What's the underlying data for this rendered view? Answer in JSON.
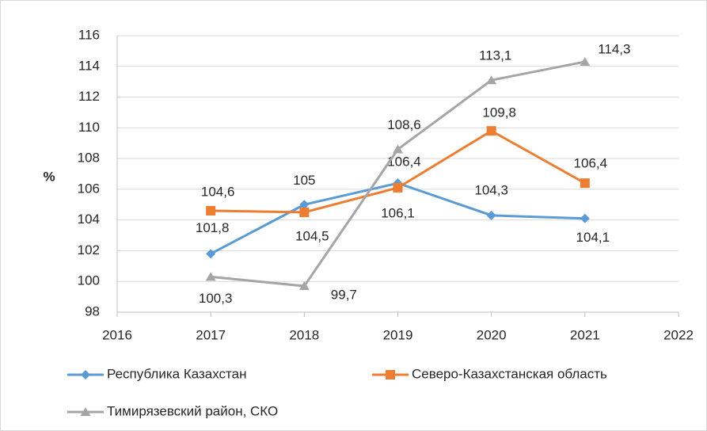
{
  "chart_data": {
    "type": "line",
    "y_label": "%",
    "xlim": [
      2016,
      2022
    ],
    "xticks": [
      2016,
      2017,
      2018,
      2019,
      2020,
      2021,
      2022
    ],
    "ylim": [
      98,
      116
    ],
    "yticks": [
      98,
      100,
      102,
      104,
      106,
      108,
      110,
      112,
      114,
      116
    ],
    "grid": true,
    "legend": "bottom",
    "x": [
      2017,
      2018,
      2019,
      2020,
      2021
    ],
    "series": [
      {
        "name": "Республика Казахстан",
        "color": "#5b9bd5",
        "values": [
          101.8,
          105,
          106.4,
          104.3,
          104.1
        ],
        "value_labels": [
          "101,8",
          "105",
          "106,4",
          "104,3",
          "104,1"
        ]
      },
      {
        "name": "Северо-Казахстанская область",
        "color": "#ed7d31",
        "values": [
          104.6,
          104.5,
          106.1,
          109.8,
          106.4
        ],
        "value_labels": [
          "104,6",
          "104,5",
          "106,1",
          "109,8",
          "106,4"
        ]
      },
      {
        "name": "Тимирязевский район, СКО",
        "color": "#a5a5a5",
        "values": [
          100.3,
          99.7,
          108.6,
          113.1,
          114.3
        ],
        "value_labels": [
          "100,3",
          "99,7",
          "108,6",
          "113,1",
          "114,3"
        ]
      }
    ]
  }
}
